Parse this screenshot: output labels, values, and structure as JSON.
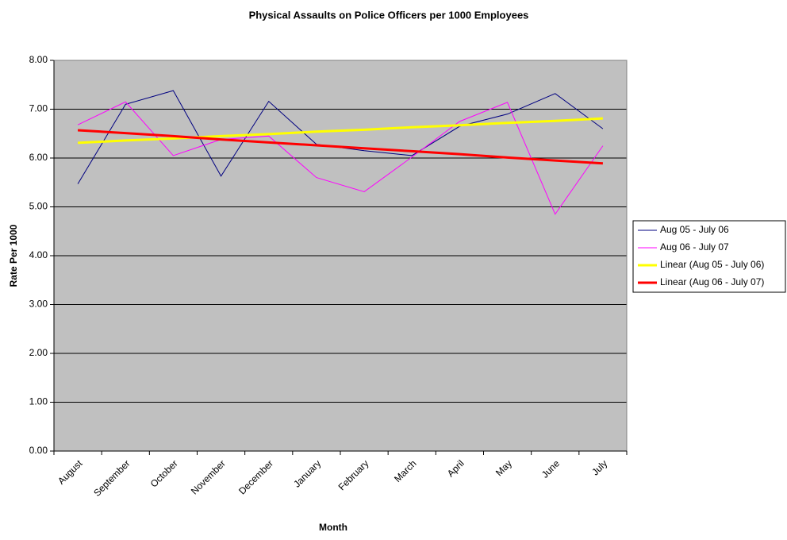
{
  "chart_data": {
    "type": "line",
    "title": "Physical Assaults on Police Officers per 1000 Employees",
    "x_label": "Month",
    "y_label": "Rate Per 1000",
    "categories": [
      "August",
      "September",
      "October",
      "November",
      "December",
      "January",
      "February",
      "March",
      "April",
      "May",
      "June",
      "July"
    ],
    "series": [
      {
        "name": "Aug 05 - July 06",
        "color": "#000080",
        "width": 1,
        "values": [
          5.47,
          7.1,
          7.38,
          5.63,
          7.16,
          6.28,
          6.15,
          6.05,
          6.65,
          6.9,
          7.32,
          6.6
        ]
      },
      {
        "name": "Aug 06 - July 07",
        "color": "#ff00ff",
        "width": 1,
        "values": [
          6.68,
          7.15,
          6.05,
          6.38,
          6.45,
          5.6,
          5.31,
          6.02,
          6.75,
          7.14,
          4.85,
          6.25
        ]
      },
      {
        "name": "Linear (Aug 05 - July 06)",
        "color": "#ffff00",
        "width": 3,
        "values": [
          6.31,
          6.36,
          6.4,
          6.45,
          6.49,
          6.54,
          6.58,
          6.63,
          6.67,
          6.72,
          6.76,
          6.81
        ]
      },
      {
        "name": "Linear (Aug 06 - July 07)",
        "color": "#ff0000",
        "width": 3,
        "values": [
          6.57,
          6.51,
          6.45,
          6.38,
          6.32,
          6.26,
          6.2,
          6.14,
          6.08,
          6.01,
          5.95,
          5.89
        ]
      }
    ],
    "ylim": [
      0,
      8
    ],
    "yticks": [
      {
        "value": 0,
        "label": "0.00"
      },
      {
        "value": 1,
        "label": "1.00"
      },
      {
        "value": 2,
        "label": "2.00"
      },
      {
        "value": 3,
        "label": "3.00"
      },
      {
        "value": 4,
        "label": "4.00"
      },
      {
        "value": 5,
        "label": "5.00"
      },
      {
        "value": 6,
        "label": "6.00"
      },
      {
        "value": 7,
        "label": "7.00"
      },
      {
        "value": 8,
        "label": "8.00"
      }
    ],
    "grid": true,
    "legend": "right",
    "plot_background": "#c0c0c0"
  }
}
